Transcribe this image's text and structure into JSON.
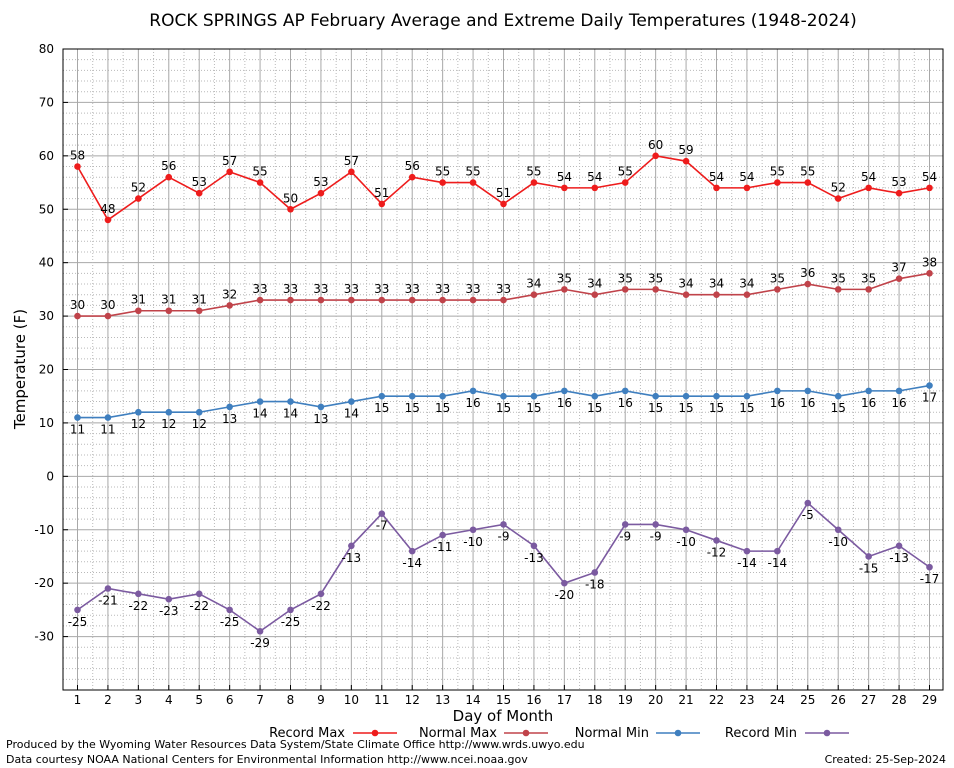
{
  "chart_data": {
    "type": "line",
    "title": "ROCK SPRINGS AP February Average and Extreme Daily Temperatures (1948-2024)",
    "xlabel": "Day of Month",
    "ylabel": "Temperature (F)",
    "ylim": [
      -40,
      80
    ],
    "yticks": [
      -30,
      -20,
      -10,
      0,
      10,
      20,
      30,
      40,
      50,
      60,
      70,
      80
    ],
    "x": [
      1,
      2,
      3,
      4,
      5,
      6,
      7,
      8,
      9,
      10,
      11,
      12,
      13,
      14,
      15,
      16,
      17,
      18,
      19,
      20,
      21,
      22,
      23,
      24,
      25,
      26,
      27,
      28,
      29
    ],
    "grid": true,
    "legend_position": "bottom",
    "series": [
      {
        "name": "Record Max",
        "color": "#ee1c1c",
        "label_position": "above",
        "values": [
          58,
          48,
          52,
          56,
          53,
          57,
          55,
          50,
          53,
          57,
          51,
          56,
          55,
          55,
          51,
          55,
          54,
          54,
          55,
          60,
          59,
          54,
          54,
          55,
          55,
          52,
          54,
          53,
          54
        ]
      },
      {
        "name": "Normal Max",
        "color": "#c0434a",
        "label_position": "above",
        "values": [
          30,
          30,
          31,
          31,
          31,
          32,
          33,
          33,
          33,
          33,
          33,
          33,
          33,
          33,
          33,
          34,
          35,
          34,
          35,
          35,
          34,
          34,
          34,
          35,
          36,
          35,
          35,
          37,
          38
        ]
      },
      {
        "name": "Normal Min",
        "color": "#3f7fbf",
        "label_position": "below",
        "values": [
          11,
          11,
          12,
          12,
          12,
          13,
          14,
          14,
          13,
          14,
          15,
          15,
          15,
          16,
          15,
          15,
          16,
          15,
          16,
          15,
          15,
          15,
          15,
          16,
          16,
          15,
          16,
          16,
          17
        ]
      },
      {
        "name": "Record Min",
        "color": "#7b5aa0",
        "label_position": "below",
        "values": [
          -25,
          -21,
          -22,
          -23,
          -22,
          -25,
          -29,
          -25,
          -22,
          -13,
          -7,
          -14,
          -11,
          -10,
          -9,
          -13,
          -20,
          -18,
          -9,
          -9,
          -10,
          -12,
          -14,
          -14,
          -5,
          -10,
          -15,
          -13,
          -17
        ]
      }
    ]
  },
  "footer": {
    "line1": "Produced by the Wyoming Water Resources Data System/State Climate Office http://www.wrds.uwyo.edu",
    "line2": "Data courtesy NOAA National Centers for Environmental Information http://www.ncei.noaa.gov",
    "created": "Created:  25-Sep-2024"
  }
}
